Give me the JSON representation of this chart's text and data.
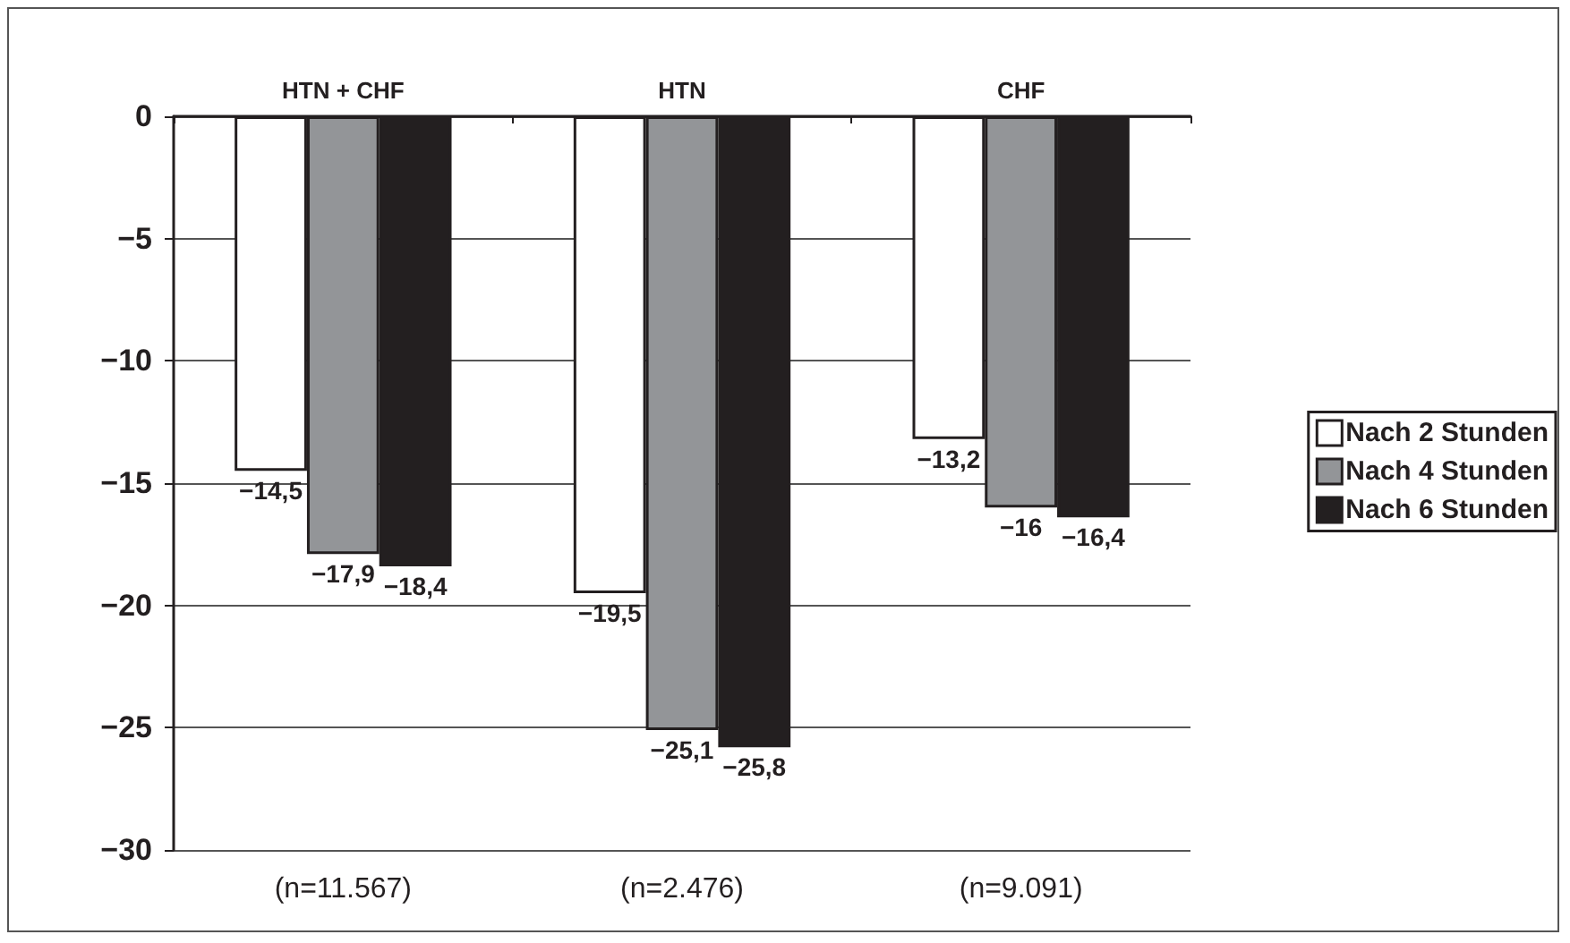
{
  "chart_data": {
    "type": "bar",
    "categories": [
      "HTN + CHF",
      "HTN",
      "CHF"
    ],
    "series": [
      {
        "name": "Nach 2 Stunden",
        "color": "#ffffff",
        "values": [
          -14.5,
          -19.5,
          -13.2
        ],
        "value_labels": [
          "−14,5",
          "−19,5",
          "−13,2"
        ]
      },
      {
        "name": "Nach 4 Stunden",
        "color": "#939598",
        "values": [
          -17.9,
          -25.1,
          -16
        ],
        "value_labels": [
          "−17,9",
          "−25,1",
          "−16"
        ]
      },
      {
        "name": "Nach 6 Stunden",
        "color": "#231f20",
        "values": [
          -18.4,
          -25.8,
          -16.4
        ],
        "value_labels": [
          "−18,4",
          "−25,8",
          "−16,4"
        ]
      }
    ],
    "ylim": [
      -30,
      0
    ],
    "yticks": [
      0,
      {
        "value": -5,
        "label": "−5"
      },
      {
        "value": -10,
        "label": "−10"
      },
      {
        "value": -15,
        "label": "−15"
      },
      {
        "value": -20,
        "label": "−20"
      },
      {
        "value": -25,
        "label": "−25"
      },
      {
        "value": -30,
        "label": "−30"
      }
    ],
    "annotations": [
      "(n=11.567)",
      "(n=2.476)",
      "(n=9.091)"
    ],
    "grid": "y",
    "legend": "right"
  }
}
